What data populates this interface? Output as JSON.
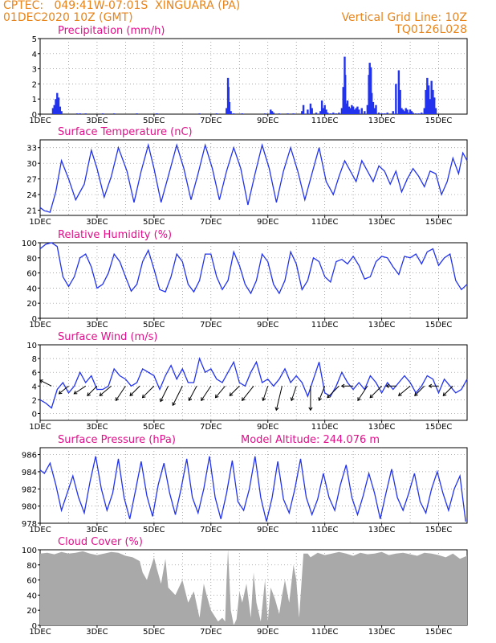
{
  "header": {
    "line1": "CPTEC:   049:41W-07:01S  XINGUARA (PA)",
    "line2": "01DEC2020 10Z (GMT)",
    "grid_note": "Vertical Grid Line: 10Z",
    "run_id": "TQ0126L028"
  },
  "colors": {
    "header": "#e8841a",
    "title": "#e0108a",
    "line": "#2233ee",
    "cloud": "#a9a9a9",
    "wind": "#000000"
  },
  "chart_data": [
    {
      "type": "bar",
      "title": "Precipitation (mm/h)",
      "xlabel": "",
      "ylabel": "",
      "xlim": [
        1,
        16
      ],
      "ylim": [
        0,
        5
      ],
      "yticks": [
        0,
        1,
        2,
        3,
        4,
        5
      ],
      "xticks": [
        "1DEC",
        "3DEC",
        "5DEC",
        "7DEC",
        "9DEC",
        "11DEC",
        "13DEC",
        "15DEC"
      ],
      "x": [
        1.45,
        1.5,
        1.55,
        1.6,
        1.65,
        1.7,
        1.75,
        2.3,
        2.4,
        2.6,
        3.2,
        3.6,
        4.4,
        5.1,
        6.6,
        7.2,
        7.55,
        7.6,
        7.62,
        7.65,
        7.7,
        7.8,
        8.1,
        8.9,
        9.1,
        9.15,
        9.2,
        9.4,
        9.7,
        9.9,
        10.2,
        10.25,
        10.4,
        10.5,
        10.55,
        10.7,
        10.85,
        10.9,
        10.95,
        11.0,
        11.05,
        11.1,
        11.2,
        11.3,
        11.4,
        11.5,
        11.6,
        11.65,
        11.7,
        11.72,
        11.75,
        11.78,
        11.8,
        11.85,
        11.9,
        11.95,
        12.0,
        12.05,
        12.1,
        12.15,
        12.2,
        12.3,
        12.4,
        12.5,
        12.55,
        12.58,
        12.6,
        12.62,
        12.65,
        12.7,
        12.75,
        12.8,
        12.9,
        13.0,
        13.1,
        13.2,
        13.4,
        13.5,
        13.6,
        13.65,
        13.7,
        13.75,
        13.8,
        13.85,
        13.9,
        13.95,
        14.0,
        14.05,
        14.1,
        14.2,
        14.3,
        14.4,
        14.5,
        14.55,
        14.6,
        14.65,
        14.7,
        14.75,
        14.8,
        14.85,
        14.9
      ],
      "values": [
        0.4,
        0.6,
        1.0,
        1.4,
        1.1,
        0.5,
        0.2,
        0.05,
        0.05,
        0.05,
        0.05,
        0.05,
        0.05,
        0.05,
        0.05,
        0.05,
        0.4,
        2.4,
        1.8,
        0.8,
        0.2,
        0.05,
        0.05,
        0.05,
        0.3,
        0.2,
        0.1,
        0.05,
        0.05,
        0.05,
        0.2,
        0.6,
        0.3,
        0.7,
        0.4,
        0.1,
        0.2,
        0.9,
        0.4,
        0.6,
        0.3,
        0.1,
        0.05,
        0.1,
        0.05,
        0.1,
        0.4,
        1.8,
        3.8,
        2.6,
        0.7,
        0.4,
        0.9,
        0.5,
        0.4,
        0.6,
        0.5,
        0.3,
        0.4,
        0.5,
        0.3,
        0.4,
        0.2,
        0.6,
        2.6,
        3.4,
        1.9,
        3.1,
        1.4,
        0.8,
        0.4,
        0.6,
        0.1,
        0.05,
        0.05,
        0.1,
        0.2,
        2.0,
        2.9,
        1.6,
        0.4,
        0.3,
        0.2,
        0.4,
        0.3,
        0.1,
        0.3,
        0.2,
        0.1,
        0.05,
        0.05,
        0.1,
        0.4,
        1.6,
        2.4,
        1.9,
        1.0,
        2.2,
        1.6,
        1.1,
        0.4
      ]
    },
    {
      "type": "line",
      "title": "Surface Temperature (nC)",
      "xlabel": "",
      "ylabel": "",
      "xlim": [
        1,
        16
      ],
      "ylim": [
        20,
        34.5
      ],
      "yticks": [
        21,
        24,
        27,
        30,
        33
      ],
      "xticks": [
        "1DEC",
        "3DEC",
        "5DEC",
        "7DEC",
        "9DEC",
        "11DEC",
        "13DEC",
        "15DEC"
      ],
      "x": [
        1.0,
        1.15,
        1.35,
        1.55,
        1.75,
        2.0,
        2.25,
        2.55,
        2.8,
        3.0,
        3.25,
        3.5,
        3.75,
        4.05,
        4.3,
        4.55,
        4.8,
        5.0,
        5.25,
        5.55,
        5.8,
        6.05,
        6.3,
        6.55,
        6.8,
        7.05,
        7.3,
        7.55,
        7.8,
        8.05,
        8.3,
        8.55,
        8.8,
        9.05,
        9.3,
        9.55,
        9.8,
        10.05,
        10.3,
        10.55,
        10.8,
        11.05,
        11.3,
        11.5,
        11.7,
        11.9,
        12.1,
        12.3,
        12.5,
        12.7,
        12.9,
        13.1,
        13.3,
        13.5,
        13.7,
        13.9,
        14.1,
        14.3,
        14.5,
        14.7,
        14.9,
        15.1,
        15.3,
        15.5,
        15.7,
        15.85,
        16.0
      ],
      "values": [
        21.5,
        20.9,
        20.6,
        24.5,
        30.5,
        27.0,
        23.0,
        26.0,
        32.5,
        29.0,
        23.5,
        27.5,
        33.0,
        28.5,
        22.5,
        28.5,
        33.5,
        29.0,
        22.5,
        28.5,
        33.5,
        29.0,
        23.0,
        28.0,
        33.5,
        29.0,
        23.0,
        28.5,
        33.0,
        29.0,
        22.0,
        28.0,
        33.5,
        29.0,
        22.5,
        28.5,
        33.0,
        28.5,
        23.0,
        28.0,
        33.0,
        26.5,
        24.0,
        27.5,
        30.5,
        28.5,
        26.5,
        30.5,
        28.5,
        26.5,
        29.5,
        28.5,
        26.0,
        28.5,
        24.5,
        27.0,
        29.0,
        27.5,
        25.5,
        28.5,
        28.0,
        24.0,
        26.5,
        31.0,
        28.0,
        32.0,
        30.5
      ]
    },
    {
      "type": "line",
      "title": "Relative Humidity (%)",
      "xlabel": "",
      "ylabel": "",
      "xlim": [
        1,
        16
      ],
      "ylim": [
        0,
        100
      ],
      "yticks": [
        0,
        20,
        40,
        60,
        80,
        100
      ],
      "xticks": [
        "1DEC",
        "3DEC",
        "5DEC",
        "7DEC",
        "9DEC",
        "11DEC",
        "13DEC",
        "15DEC"
      ],
      "x": [
        1.0,
        1.2,
        1.4,
        1.6,
        1.8,
        2.0,
        2.2,
        2.4,
        2.6,
        2.8,
        3.0,
        3.2,
        3.4,
        3.6,
        3.8,
        4.0,
        4.2,
        4.4,
        4.6,
        4.8,
        5.0,
        5.2,
        5.4,
        5.6,
        5.8,
        6.0,
        6.2,
        6.4,
        6.6,
        6.8,
        7.0,
        7.2,
        7.4,
        7.6,
        7.8,
        8.0,
        8.2,
        8.4,
        8.6,
        8.8,
        9.0,
        9.2,
        9.4,
        9.6,
        9.8,
        10.0,
        10.2,
        10.4,
        10.6,
        10.8,
        11.0,
        11.2,
        11.4,
        11.6,
        11.8,
        12.0,
        12.2,
        12.4,
        12.6,
        12.8,
        13.0,
        13.2,
        13.4,
        13.6,
        13.8,
        14.0,
        14.2,
        14.4,
        14.6,
        14.8,
        15.0,
        15.2,
        15.4,
        15.6,
        15.8,
        16.0
      ],
      "values": [
        92,
        98,
        100,
        95,
        55,
        42,
        55,
        80,
        85,
        68,
        40,
        45,
        60,
        85,
        75,
        55,
        36,
        45,
        75,
        90,
        65,
        38,
        35,
        55,
        85,
        75,
        45,
        35,
        50,
        85,
        85,
        55,
        38,
        50,
        88,
        70,
        45,
        33,
        50,
        85,
        75,
        45,
        33,
        50,
        88,
        72,
        38,
        50,
        80,
        75,
        55,
        48,
        75,
        78,
        72,
        82,
        70,
        52,
        55,
        75,
        82,
        80,
        68,
        58,
        82,
        80,
        85,
        72,
        88,
        92,
        70,
        80,
        85,
        50,
        38,
        45
      ]
    },
    {
      "type": "line",
      "title": "Surface Wind (m/s)",
      "xlabel": "",
      "ylabel": "",
      "xlim": [
        1,
        16
      ],
      "ylim": [
        -1,
        10
      ],
      "yticks": [
        0,
        2,
        4,
        6,
        8,
        10
      ],
      "xticks": [
        "1DEC",
        "3DEC",
        "5DEC",
        "7DEC",
        "9DEC",
        "11DEC",
        "13DEC",
        "15DEC"
      ],
      "x": [
        1.0,
        1.2,
        1.4,
        1.6,
        1.8,
        2.0,
        2.2,
        2.4,
        2.6,
        2.8,
        3.0,
        3.2,
        3.4,
        3.6,
        3.8,
        4.0,
        4.2,
        4.4,
        4.6,
        4.8,
        5.0,
        5.2,
        5.4,
        5.6,
        5.8,
        6.0,
        6.2,
        6.4,
        6.6,
        6.8,
        7.0,
        7.2,
        7.4,
        7.6,
        7.8,
        8.0,
        8.2,
        8.4,
        8.6,
        8.8,
        9.0,
        9.2,
        9.4,
        9.6,
        9.8,
        10.0,
        10.2,
        10.4,
        10.6,
        10.8,
        11.0,
        11.2,
        11.4,
        11.6,
        11.8,
        12.0,
        12.2,
        12.4,
        12.6,
        12.8,
        13.0,
        13.2,
        13.4,
        13.6,
        13.8,
        14.0,
        14.2,
        14.4,
        14.6,
        14.8,
        15.0,
        15.2,
        15.4,
        15.6,
        15.8,
        16.0
      ],
      "values": [
        2.0,
        1.5,
        0.8,
        3.5,
        4.5,
        3.0,
        4.0,
        6.0,
        4.5,
        5.5,
        3.5,
        3.5,
        4.0,
        6.5,
        5.5,
        5.0,
        4.0,
        4.5,
        6.5,
        6.0,
        5.5,
        3.5,
        5.5,
        7.0,
        5.0,
        6.5,
        4.5,
        4.5,
        8.0,
        6.0,
        6.5,
        5.0,
        4.5,
        6.0,
        7.5,
        4.5,
        4.0,
        6.0,
        7.5,
        4.5,
        5.0,
        4.0,
        5.0,
        6.5,
        4.5,
        5.5,
        4.5,
        2.5,
        5.0,
        7.5,
        3.0,
        2.5,
        4.0,
        6.0,
        4.5,
        3.5,
        4.5,
        3.5,
        5.5,
        4.5,
        3.0,
        4.5,
        3.5,
        4.5,
        5.5,
        4.5,
        3.0,
        4.0,
        5.5,
        5.0,
        3.0,
        5.0,
        4.0,
        3.0,
        3.5,
        5.0
      ],
      "vectors": {
        "x": [
          1.4,
          2.0,
          2.6,
          3.0,
          3.5,
          4.0,
          4.5,
          5.0,
          5.5,
          6.0,
          6.5,
          7.0,
          7.5,
          8.0,
          8.5,
          9.0,
          9.5,
          10.0,
          10.5,
          11.0,
          11.5,
          12.0,
          12.5,
          13.0,
          13.5,
          14.0,
          14.5,
          15.0,
          15.5
        ],
        "u": [
          -1.2,
          -1.0,
          -1.2,
          -1.0,
          -1.2,
          -1.0,
          -1.0,
          -1.2,
          -0.8,
          -1.0,
          -0.8,
          -1.0,
          -1.0,
          -1.0,
          -1.2,
          -0.5,
          -0.6,
          -0.5,
          0.0,
          -0.6,
          -1.2,
          -1.2,
          -1.0,
          -1.2,
          -1.0,
          -1.2,
          -1.0,
          -1.0,
          -1.0
        ],
        "v": [
          0.6,
          -0.8,
          -0.8,
          -1.0,
          -1.0,
          -1.5,
          -1.0,
          -1.2,
          -1.6,
          -2.0,
          -1.5,
          -1.5,
          -1.2,
          -1.0,
          -1.5,
          -1.5,
          -2.5,
          -1.5,
          -2.5,
          -1.5,
          -1.2,
          0.0,
          -1.5,
          -1.2,
          0.0,
          -1.0,
          -1.0,
          0.0,
          -1.0
        ]
      }
    },
    {
      "type": "line",
      "title": "Surface Pressure (hPa)",
      "annotation": "Model Altitude: 244.076 m",
      "xlabel": "",
      "ylabel": "",
      "xlim": [
        1,
        16
      ],
      "ylim": [
        978,
        986.8
      ],
      "yticks": [
        978,
        980,
        982,
        984,
        986
      ],
      "xticks": [
        "1DEC",
        "3DEC",
        "5DEC",
        "7DEC",
        "9DEC",
        "11DEC",
        "13DEC",
        "15DEC"
      ],
      "x": [
        1.0,
        1.15,
        1.35,
        1.55,
        1.75,
        1.95,
        2.15,
        2.35,
        2.55,
        2.75,
        2.95,
        3.15,
        3.35,
        3.55,
        3.75,
        3.95,
        4.15,
        4.35,
        4.55,
        4.75,
        4.95,
        5.15,
        5.35,
        5.55,
        5.75,
        5.95,
        6.15,
        6.35,
        6.55,
        6.75,
        6.95,
        7.15,
        7.35,
        7.55,
        7.75,
        7.95,
        8.15,
        8.35,
        8.55,
        8.75,
        8.95,
        9.15,
        9.35,
        9.55,
        9.75,
        9.95,
        10.15,
        10.35,
        10.55,
        10.75,
        10.95,
        11.15,
        11.35,
        11.55,
        11.75,
        11.95,
        12.15,
        12.35,
        12.55,
        12.75,
        12.95,
        13.15,
        13.35,
        13.55,
        13.75,
        13.95,
        14.15,
        14.35,
        14.55,
        14.75,
        14.95,
        15.15,
        15.35,
        15.55,
        15.75,
        15.95
      ],
      "values": [
        984.2,
        983.8,
        985.0,
        982.5,
        979.5,
        981.5,
        983.5,
        981.0,
        979.2,
        982.8,
        985.8,
        982.0,
        979.5,
        981.5,
        985.5,
        981.0,
        978.5,
        981.8,
        985.2,
        981.2,
        978.8,
        982.5,
        985.0,
        981.5,
        979.0,
        982.0,
        985.5,
        981.0,
        979.2,
        982.0,
        985.8,
        981.0,
        978.5,
        981.5,
        985.3,
        980.5,
        979.5,
        982.0,
        985.8,
        981.0,
        978.2,
        981.0,
        985.2,
        980.8,
        979.2,
        982.0,
        985.5,
        981.0,
        979.0,
        980.8,
        983.8,
        981.0,
        979.5,
        982.5,
        984.8,
        981.0,
        979.0,
        981.2,
        983.8,
        981.5,
        978.5,
        981.5,
        984.3,
        981.0,
        979.5,
        981.5,
        983.8,
        980.5,
        979.2,
        982.0,
        984.0,
        981.5,
        979.5,
        982.0,
        983.5,
        978.2
      ]
    },
    {
      "type": "area",
      "title": "Cloud Cover (%)",
      "xlabel": "",
      "ylabel": "",
      "xlim": [
        1,
        16
      ],
      "ylim": [
        0,
        100
      ],
      "yticks": [
        0,
        20,
        40,
        60,
        80,
        100
      ],
      "xticks": [
        "1DEC",
        "3DEC",
        "5DEC",
        "7DEC",
        "9DEC",
        "11DEC",
        "13DEC",
        "15DEC"
      ],
      "x": [
        1.0,
        1.25,
        1.5,
        1.75,
        2.0,
        2.25,
        2.5,
        2.75,
        3.0,
        3.25,
        3.5,
        3.75,
        4.0,
        4.25,
        4.5,
        4.6,
        4.75,
        5.0,
        5.1,
        5.25,
        5.4,
        5.5,
        5.75,
        6.0,
        6.2,
        6.4,
        6.6,
        6.75,
        6.85,
        7.0,
        7.25,
        7.4,
        7.5,
        7.55,
        7.6,
        7.7,
        7.8,
        7.9,
        8.0,
        8.1,
        8.25,
        8.4,
        8.5,
        8.6,
        8.75,
        8.9,
        9.0,
        9.1,
        9.25,
        9.4,
        9.5,
        9.6,
        9.75,
        9.9,
        10.0,
        10.1,
        10.25,
        10.4,
        10.5,
        10.75,
        11.0,
        11.25,
        11.5,
        11.75,
        12.0,
        12.25,
        12.5,
        12.75,
        13.0,
        13.25,
        13.5,
        13.75,
        14.0,
        14.25,
        14.5,
        14.75,
        15.0,
        15.25,
        15.5,
        15.75,
        16.0
      ],
      "values": [
        95,
        96,
        94,
        97,
        95,
        96,
        98,
        95,
        93,
        95,
        97,
        96,
        92,
        90,
        85,
        70,
        60,
        90,
        75,
        55,
        88,
        50,
        40,
        60,
        30,
        45,
        10,
        55,
        40,
        20,
        5,
        10,
        5,
        60,
        100,
        20,
        0,
        8,
        45,
        30,
        55,
        10,
        70,
        30,
        5,
        60,
        5,
        50,
        35,
        15,
        40,
        60,
        30,
        80,
        60,
        10,
        95,
        95,
        90,
        96,
        93,
        95,
        97,
        95,
        92,
        96,
        94,
        95,
        97,
        93,
        95,
        96,
        94,
        92,
        96,
        95,
        93,
        90,
        95,
        88,
        92
      ]
    }
  ]
}
